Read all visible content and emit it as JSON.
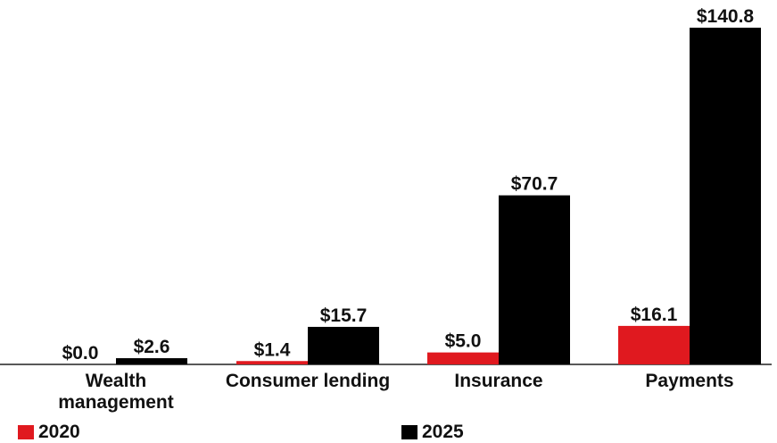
{
  "chart_data": {
    "type": "bar",
    "categories": [
      "Wealth management",
      "Consumer lending",
      "Insurance",
      "Payments"
    ],
    "category_lines": [
      [
        "Wealth",
        "management"
      ],
      [
        "Consumer lending"
      ],
      [
        "Insurance"
      ],
      [
        "Payments"
      ]
    ],
    "series": [
      {
        "name": "2020",
        "values": [
          0.0,
          1.4,
          5.0,
          16.1
        ],
        "labels": [
          "$0.0",
          "$1.4",
          "$5.0",
          "$16.1"
        ],
        "color": "#e0191f"
      },
      {
        "name": "2025",
        "values": [
          2.6,
          15.7,
          70.7,
          140.8
        ],
        "labels": [
          "$2.6",
          "$15.7",
          "$70.7",
          "$140.8"
        ],
        "color": "#000000"
      }
    ],
    "ylim": [
      0,
      140.8
    ],
    "grid": false,
    "legend_position": "bottom"
  }
}
